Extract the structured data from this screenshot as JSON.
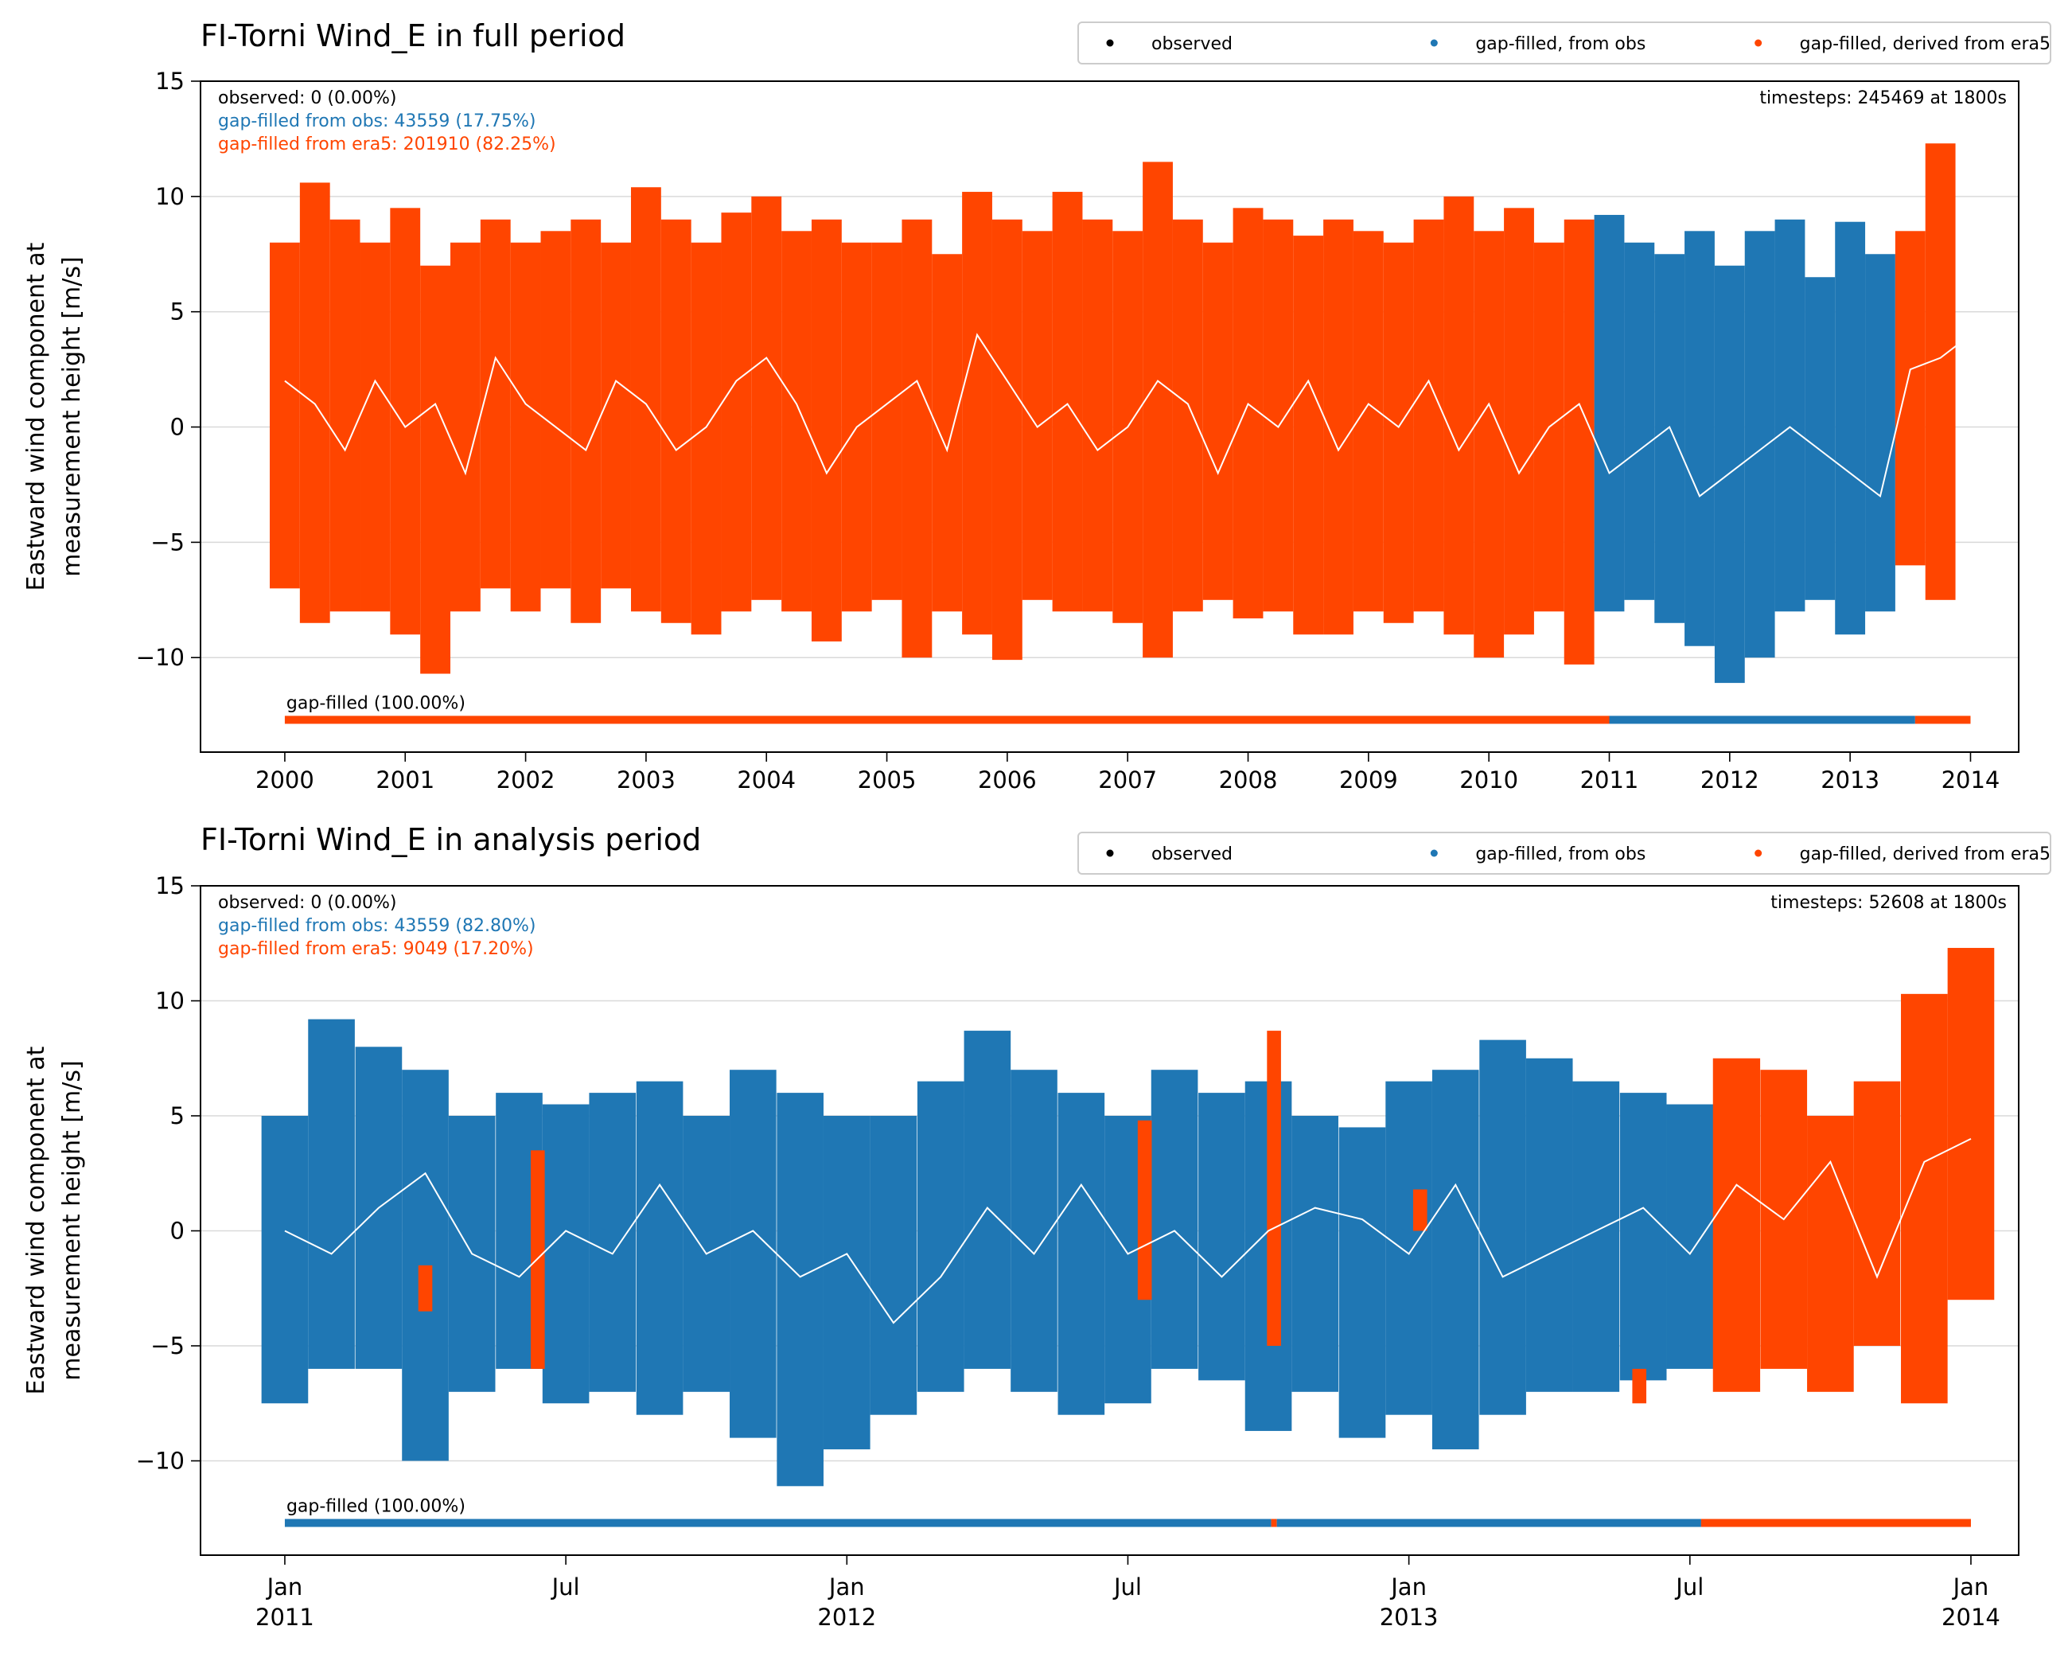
{
  "chart_data": [
    {
      "type": "range",
      "title": "FI-Torni Wind_E in full period",
      "ylabel": [
        "Eastward wind component at",
        "measurement height [m/s]"
      ],
      "legend": "upper right",
      "grid": true,
      "xlim": [
        1999.3,
        2014.4
      ],
      "ylim": [
        -14.1,
        15
      ],
      "xticks": [
        2000,
        2001,
        2002,
        2003,
        2004,
        2005,
        2006,
        2007,
        2008,
        2009,
        2010,
        2011,
        2012,
        2013,
        2014
      ],
      "yticks": [
        {
          "value": -10,
          "label": "−10"
        },
        {
          "value": -5,
          "label": "−5"
        },
        0,
        5,
        10,
        15
      ],
      "annotations": [
        {
          "text": "observed: 0 (0.00%)",
          "color": "#000000"
        },
        {
          "text": "gap-filled from obs: 43559 (17.75%)",
          "color": "#1f77b4"
        },
        {
          "text": "gap-filled from era5: 201910 (82.25%)",
          "color": "#ff4500"
        }
      ],
      "corner_note": "timesteps: 245469 at 1800s",
      "series": [
        {
          "name": "observed",
          "color": "#000000",
          "x": [],
          "low": [],
          "high": []
        },
        {
          "name": "gap-filled, from obs",
          "color": "#1f77b4",
          "x": [
            2011,
            2011.25,
            2011.5,
            2011.75,
            2012,
            2012.25,
            2012.5,
            2012.75,
            2013,
            2013.25
          ],
          "low": [
            -8,
            -7.5,
            -8.5,
            -9.5,
            -11.1,
            -10,
            -8,
            -7.5,
            -9,
            -8
          ],
          "high": [
            9.2,
            8,
            7.5,
            8.5,
            7,
            8.5,
            9,
            6.5,
            8.9,
            7.5
          ]
        },
        {
          "name": "gap-filled, derived from era5",
          "color": "#ff4500",
          "x": [
            2000,
            2000.25,
            2000.5,
            2000.75,
            2001,
            2001.25,
            2001.5,
            2001.75,
            2002,
            2002.25,
            2002.5,
            2002.75,
            2003,
            2003.25,
            2003.5,
            2003.75,
            2004,
            2004.25,
            2004.5,
            2004.75,
            2005,
            2005.25,
            2005.5,
            2005.75,
            2006,
            2006.25,
            2006.5,
            2006.75,
            2007,
            2007.25,
            2007.5,
            2007.75,
            2008,
            2008.25,
            2008.5,
            2008.75,
            2009,
            2009.25,
            2009.5,
            2009.75,
            2010,
            2010.25,
            2010.5,
            2010.75,
            2013.5,
            2013.75
          ],
          "low": [
            -7,
            -8.5,
            -8,
            -8,
            -9,
            -10.7,
            -8,
            -7,
            -8,
            -7,
            -8.5,
            -7,
            -8,
            -8.5,
            -9,
            -8,
            -7.5,
            -8,
            -9.3,
            -8,
            -7.5,
            -10,
            -8,
            -9,
            -10.1,
            -7.5,
            -8,
            -8,
            -8.5,
            -10,
            -8,
            -7.5,
            -8.3,
            -8,
            -9,
            -9,
            -8,
            -8.5,
            -8,
            -9,
            -10,
            -9,
            -8,
            -10.3,
            -6,
            -7.5
          ],
          "high": [
            8,
            10.6,
            9,
            8,
            9.5,
            7,
            8,
            9,
            8,
            8.5,
            9,
            8,
            10.4,
            9,
            8,
            9.3,
            10,
            8.5,
            9,
            8,
            8,
            9,
            7.5,
            10.2,
            9,
            8.5,
            10.2,
            9,
            8.5,
            11.5,
            9,
            8,
            9.5,
            9,
            8.3,
            9,
            8.5,
            8,
            9,
            10,
            8.5,
            9.5,
            8,
            9,
            8.5,
            12.3
          ]
        }
      ],
      "mean_line": {
        "color": "#ffffff",
        "x": [
          2000,
          2000.25,
          2000.5,
          2000.75,
          2001,
          2001.25,
          2001.5,
          2001.75,
          2002,
          2002.25,
          2002.5,
          2002.75,
          2003,
          2003.25,
          2003.5,
          2003.75,
          2004,
          2004.25,
          2004.5,
          2004.75,
          2005,
          2005.25,
          2005.5,
          2005.75,
          2006,
          2006.25,
          2006.5,
          2006.75,
          2007,
          2007.25,
          2007.5,
          2007.75,
          2008,
          2008.25,
          2008.5,
          2008.75,
          2009,
          2009.25,
          2009.5,
          2009.75,
          2010,
          2010.25,
          2010.5,
          2010.75,
          2011,
          2011.25,
          2011.5,
          2011.75,
          2012,
          2012.25,
          2012.5,
          2012.75,
          2013,
          2013.25,
          2013.5,
          2013.75,
          2014
        ],
        "values": [
          2,
          1,
          -1,
          2,
          0,
          1,
          -2,
          3,
          1,
          0,
          -1,
          2,
          1,
          -1,
          0,
          2,
          3,
          1,
          -2,
          0,
          1,
          2,
          -1,
          4,
          2,
          0,
          1,
          -1,
          0,
          2,
          1,
          -2,
          1,
          0,
          2,
          -1,
          1,
          0,
          2,
          -1,
          1,
          -2,
          0,
          1,
          -2,
          -1,
          0,
          -3,
          -2,
          -1,
          0,
          -1,
          -2,
          -3,
          2.5,
          3,
          4
        ]
      },
      "coverage": {
        "label": "gap-filled (100.00%)",
        "y": -12.7,
        "segments": [
          {
            "start": 2000,
            "end": 2011,
            "color": "#ff4500"
          },
          {
            "start": 2011,
            "end": 2013.54,
            "color": "#1f77b4"
          },
          {
            "start": 2013.54,
            "end": 2014,
            "color": "#ff4500"
          }
        ]
      }
    },
    {
      "type": "range",
      "title": "FI-Torni Wind_E in analysis period",
      "ylabel": [
        "Eastward wind component at",
        "measurement height [m/s]"
      ],
      "legend": "upper right",
      "grid": true,
      "xlim": [
        2010.85,
        2014.085
      ],
      "ylim": [
        -14.1,
        15
      ],
      "xticks": [
        {
          "value": 2011,
          "label": "Jan\n2011"
        },
        {
          "value": 2011.5,
          "label": "Jul"
        },
        {
          "value": 2012,
          "label": "Jan\n2012"
        },
        {
          "value": 2012.5,
          "label": "Jul"
        },
        {
          "value": 2013,
          "label": "Jan\n2013"
        },
        {
          "value": 2013.5,
          "label": "Jul"
        },
        {
          "value": 2014,
          "label": "Jan\n2014"
        }
      ],
      "yticks": [
        {
          "value": -10,
          "label": "−10"
        },
        {
          "value": -5,
          "label": "−5"
        },
        0,
        5,
        10,
        15
      ],
      "annotations": [
        {
          "text": "observed: 0 (0.00%)",
          "color": "#000000"
        },
        {
          "text": "gap-filled from obs: 43559 (82.80%)",
          "color": "#1f77b4"
        },
        {
          "text": "gap-filled from era5: 9049 (17.20%)",
          "color": "#ff4500"
        }
      ],
      "corner_note": "timesteps: 52608 at 1800s",
      "series": [
        {
          "name": "observed",
          "color": "#000000",
          "x": [],
          "low": [],
          "high": []
        },
        {
          "name": "gap-filled, from obs",
          "color": "#1f77b4",
          "x": [
            2011,
            2011.083,
            2011.167,
            2011.25,
            2011.333,
            2011.417,
            2011.5,
            2011.583,
            2011.667,
            2011.75,
            2011.833,
            2011.917,
            2012,
            2012.083,
            2012.167,
            2012.25,
            2012.333,
            2012.417,
            2012.5,
            2012.583,
            2012.667,
            2012.75,
            2012.833,
            2012.917,
            2013,
            2013.083,
            2013.167,
            2013.25,
            2013.333,
            2013.417,
            2013.5
          ],
          "low": [
            -7.5,
            -6,
            -6,
            -10,
            -7,
            -6,
            -7.5,
            -7,
            -8,
            -7,
            -9,
            -11.1,
            -9.5,
            -8,
            -7,
            -6,
            -7,
            -8,
            -7.5,
            -6,
            -6.5,
            -8.7,
            -7,
            -9,
            -8,
            -9.5,
            -8,
            -7,
            -7,
            -6.5,
            -6
          ],
          "high": [
            5,
            9.2,
            8,
            7,
            5,
            6,
            5.5,
            6,
            6.5,
            5,
            7,
            6,
            5,
            5,
            6.5,
            8.7,
            7,
            6,
            5,
            7,
            6,
            6.5,
            5,
            4.5,
            6.5,
            7,
            8.3,
            7.5,
            6.5,
            6,
            5.5
          ]
        },
        {
          "name": "gap-filled, derived from era5",
          "color": "#ff4500",
          "x": [
            2011.25,
            2011.45,
            2012.53,
            2012.76,
            2013.02,
            2013.41,
            2013.583,
            2013.667,
            2013.75,
            2013.833,
            2013.917,
            2014
          ],
          "low": [
            -3.5,
            -6,
            -3,
            -5,
            0,
            -7.5,
            -7,
            -6,
            -7,
            -5,
            -7.5,
            -3
          ],
          "high": [
            -1.5,
            3.5,
            4.8,
            8.7,
            1.8,
            -6,
            7.5,
            7,
            5,
            6.5,
            10.3,
            12.3
          ]
        }
      ],
      "mean_line": {
        "color": "#ffffff",
        "x": [
          2011,
          2011.083,
          2011.167,
          2011.25,
          2011.333,
          2011.417,
          2011.5,
          2011.583,
          2011.667,
          2011.75,
          2011.833,
          2011.917,
          2012,
          2012.083,
          2012.167,
          2012.25,
          2012.333,
          2012.417,
          2012.5,
          2012.583,
          2012.667,
          2012.75,
          2012.833,
          2012.917,
          2013,
          2013.083,
          2013.167,
          2013.25,
          2013.333,
          2013.417,
          2013.5,
          2013.583,
          2013.667,
          2013.75,
          2013.833,
          2013.917,
          2014
        ],
        "values": [
          0,
          -1,
          1,
          2.5,
          -1,
          -2,
          0,
          -1,
          2,
          -1,
          0,
          -2,
          -1,
          -4,
          -2,
          1,
          -1,
          2,
          -1,
          0,
          -2,
          0,
          1,
          0.5,
          -1,
          2,
          -2,
          -1,
          0,
          1,
          -1,
          2,
          0.5,
          3,
          -2,
          3,
          4
        ]
      },
      "coverage": {
        "label": "gap-filled (100.00%)",
        "y": -12.7,
        "segments": [
          {
            "start": 2011,
            "end": 2012.755,
            "color": "#1f77b4"
          },
          {
            "start": 2012.755,
            "end": 2012.765,
            "color": "#ff4500"
          },
          {
            "start": 2012.765,
            "end": 2013.52,
            "color": "#1f77b4"
          },
          {
            "start": 2013.52,
            "end": 2014,
            "color": "#ff4500"
          }
        ]
      }
    }
  ]
}
